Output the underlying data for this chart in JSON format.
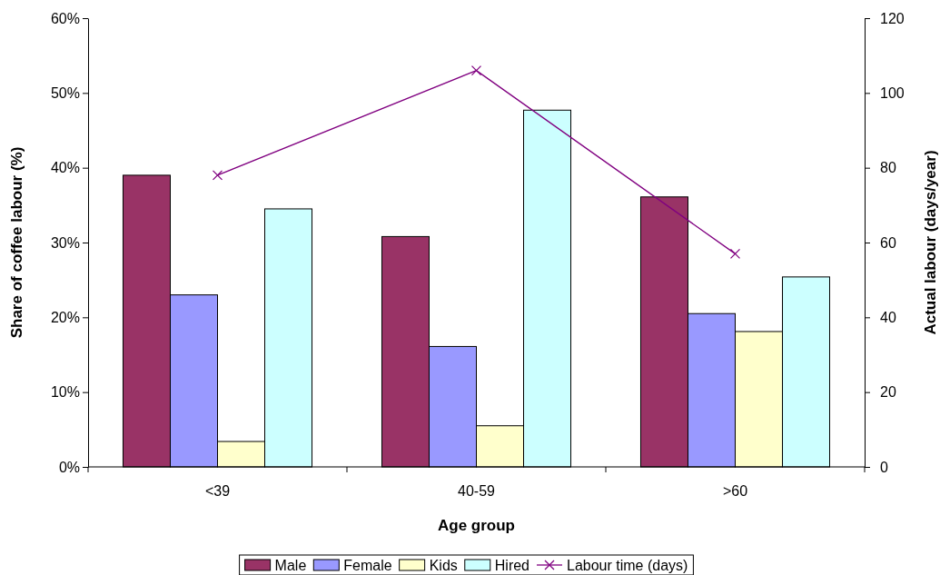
{
  "chart_data": {
    "type": "bar",
    "xlabel": "Age group",
    "ylabel": "Share of coffee labour (%)",
    "y2label": "Actual labour (days/year)",
    "categories": [
      "<39",
      "40-59",
      ">60"
    ],
    "series": [
      {
        "name": "Male",
        "color": "#993366",
        "values": [
          39.0,
          30.8,
          36.1
        ]
      },
      {
        "name": "Female",
        "color": "#9999ff",
        "values": [
          23.0,
          16.1,
          20.5
        ]
      },
      {
        "name": "Kids",
        "color": "#ffffcc",
        "values": [
          3.4,
          5.5,
          18.1
        ]
      },
      {
        "name": "Hired",
        "color": "#ccffff",
        "values": [
          34.5,
          47.7,
          25.4
        ]
      },
      {
        "name": "Labour time (days)",
        "type": "line",
        "axis": "y2",
        "color": "#800080",
        "marker": "cross",
        "values": [
          78,
          106,
          57
        ]
      }
    ],
    "ylim": [
      0,
      60
    ],
    "yticks": [
      {
        "value": 0,
        "label": "0%"
      },
      {
        "value": 10,
        "label": "10%"
      },
      {
        "value": 20,
        "label": "20%"
      },
      {
        "value": 30,
        "label": "30%"
      },
      {
        "value": 40,
        "label": "40%"
      },
      {
        "value": 50,
        "label": "50%"
      },
      {
        "value": 60,
        "label": "60%"
      }
    ],
    "y2lim": [
      0,
      120
    ],
    "y2ticks": [
      0,
      20,
      40,
      60,
      80,
      100,
      120
    ],
    "grid": false,
    "legend": "bottom"
  }
}
